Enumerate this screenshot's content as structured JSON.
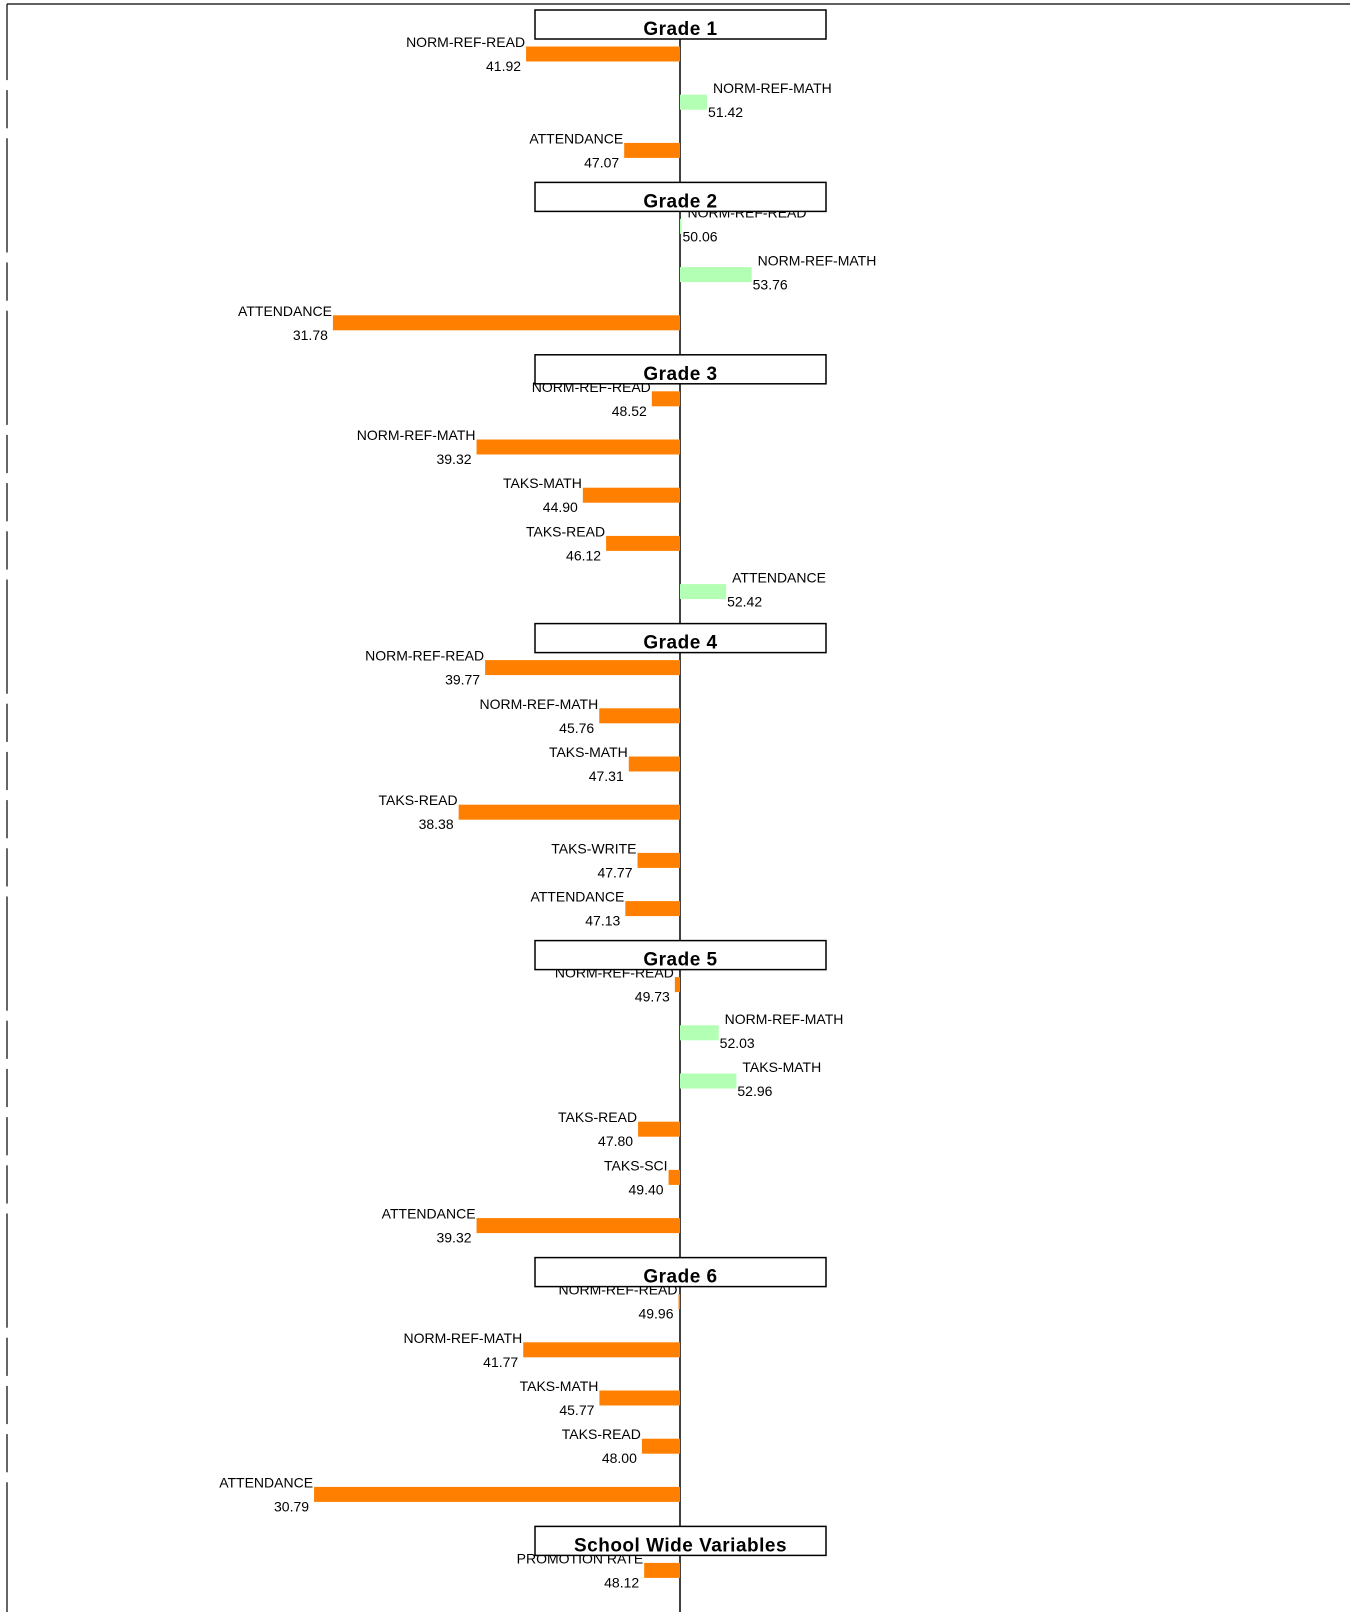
{
  "chart_data": {
    "type": "bar",
    "orientation": "horizontal",
    "baseline": 50,
    "title": "",
    "xlabel": "",
    "ylabel": "",
    "colors": {
      "below_baseline": "#ff8000",
      "above_baseline": "#b3ffb3",
      "axis": "#000000",
      "frame": "#000000"
    },
    "sections": [
      {
        "title": "Grade 1",
        "bars": [
          {
            "label": "NORM-REF-READ",
            "value": 41.92,
            "value_label": "41.92"
          },
          {
            "label": "NORM-REF-MATH",
            "value": 51.42,
            "value_label": "51.42"
          },
          {
            "label": "ATTENDANCE",
            "value": 47.07,
            "value_label": "47.07"
          }
        ]
      },
      {
        "title": "Grade 2",
        "bars": [
          {
            "label": "NORM-REF-READ",
            "value": 50.06,
            "value_label": "50.06"
          },
          {
            "label": "NORM-REF-MATH",
            "value": 53.76,
            "value_label": "53.76"
          },
          {
            "label": "ATTENDANCE",
            "value": 31.78,
            "value_label": "31.78"
          }
        ]
      },
      {
        "title": "Grade 3",
        "bars": [
          {
            "label": "NORM-REF-READ",
            "value": 48.52,
            "value_label": "48.52"
          },
          {
            "label": "NORM-REF-MATH",
            "value": 39.32,
            "value_label": "39.32"
          },
          {
            "label": "TAKS-MATH",
            "value": 44.9,
            "value_label": "44.90"
          },
          {
            "label": "TAKS-READ",
            "value": 46.12,
            "value_label": "46.12"
          },
          {
            "label": "ATTENDANCE",
            "value": 52.42,
            "value_label": "52.42"
          }
        ]
      },
      {
        "title": "Grade 4",
        "bars": [
          {
            "label": "NORM-REF-READ",
            "value": 39.77,
            "value_label": "39.77"
          },
          {
            "label": "NORM-REF-MATH",
            "value": 45.76,
            "value_label": "45.76"
          },
          {
            "label": "TAKS-MATH",
            "value": 47.31,
            "value_label": "47.31"
          },
          {
            "label": "TAKS-READ",
            "value": 38.38,
            "value_label": "38.38"
          },
          {
            "label": "TAKS-WRITE",
            "value": 47.77,
            "value_label": "47.77"
          },
          {
            "label": "ATTENDANCE",
            "value": 47.13,
            "value_label": "47.13"
          }
        ]
      },
      {
        "title": "Grade 5",
        "bars": [
          {
            "label": "NORM-REF-READ",
            "value": 49.73,
            "value_label": "49.73"
          },
          {
            "label": "NORM-REF-MATH",
            "value": 52.03,
            "value_label": "52.03"
          },
          {
            "label": "TAKS-MATH",
            "value": 52.96,
            "value_label": "52.96"
          },
          {
            "label": "TAKS-READ",
            "value": 47.8,
            "value_label": "47.80"
          },
          {
            "label": "TAKS-SCI",
            "value": 49.4,
            "value_label": "49.40"
          },
          {
            "label": "ATTENDANCE",
            "value": 39.32,
            "value_label": "39.32"
          }
        ]
      },
      {
        "title": "Grade 6",
        "bars": [
          {
            "label": "NORM-REF-READ",
            "value": 49.96,
            "value_label": "49.96"
          },
          {
            "label": "NORM-REF-MATH",
            "value": 41.77,
            "value_label": "41.77"
          },
          {
            "label": "TAKS-MATH",
            "value": 45.77,
            "value_label": "45.77"
          },
          {
            "label": "TAKS-READ",
            "value": 48.0,
            "value_label": "48.00"
          },
          {
            "label": "ATTENDANCE",
            "value": 30.79,
            "value_label": "30.79"
          }
        ]
      },
      {
        "title": "School Wide Variables",
        "bars": [
          {
            "label": "PROMOTION RATE",
            "value": 48.12,
            "value_label": "48.12"
          }
        ]
      }
    ]
  }
}
